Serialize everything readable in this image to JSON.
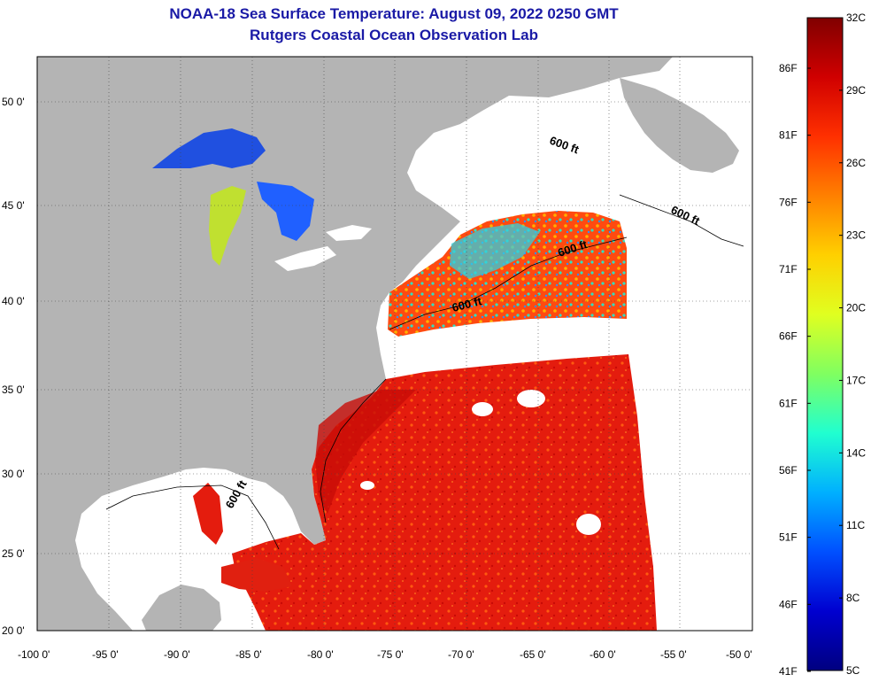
{
  "title": {
    "line1": "NOAA-18 Sea Surface Temperature:  August 09, 2022 0250 GMT",
    "line2": "Rutgers Coastal Ocean Observation Lab"
  },
  "map": {
    "lat_labels": [
      "50 0'",
      "45 0'",
      "40 0'",
      "35 0'",
      "30 0'",
      "25 0'",
      "20 0'"
    ],
    "lon_labels": [
      "-100 0'",
      "-95 0'",
      "-90 0'",
      "-85 0'",
      "-80 0'",
      "-75 0'",
      "-70 0'",
      "-65 0'",
      "-60 0'",
      "-55 0'",
      "-50 0'"
    ],
    "contour_label": "600 ft",
    "colors": {
      "land": "#b4b4b4",
      "cloud": "#ffffff",
      "warm": "#e82010",
      "hot": "#c81008"
    }
  },
  "colorbar": {
    "celsius": [
      "32C",
      "29C",
      "26C",
      "23C",
      "20C",
      "17C",
      "14C",
      "11C",
      "8C",
      "5C"
    ],
    "fahrenheit": [
      "86F",
      "81F",
      "76F",
      "71F",
      "66F",
      "61F",
      "56F",
      "51F",
      "46F",
      "41F"
    ],
    "gradient": [
      "#800000",
      "#d00000",
      "#ff3000",
      "#ff8000",
      "#ffd000",
      "#e0ff20",
      "#80ff60",
      "#20ffd0",
      "#00b0ff",
      "#0050ff",
      "#0000d0",
      "#000080"
    ]
  }
}
